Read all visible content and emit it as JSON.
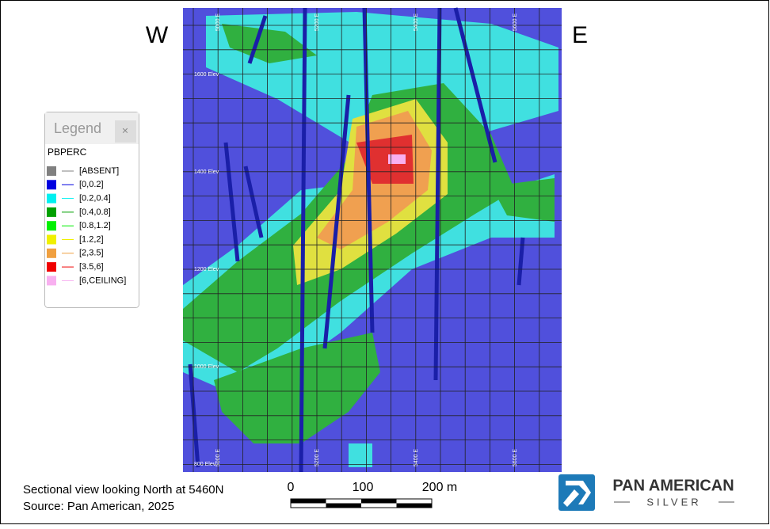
{
  "labels": {
    "west": "W",
    "east": "E"
  },
  "legend": {
    "title": "Legend",
    "close": "×",
    "field": "PBPERC",
    "items": [
      {
        "label": "[ABSENT]",
        "color": "#808080"
      },
      {
        "label": "[0,0.2]",
        "color": "#0000e0"
      },
      {
        "label": "[0.2,0.4]",
        "color": "#00f0f0"
      },
      {
        "label": "[0.4,0.8]",
        "color": "#00a000"
      },
      {
        "label": "[0.8,1.2]",
        "color": "#00f000"
      },
      {
        "label": "[1.2,2]",
        "color": "#f0f000"
      },
      {
        "label": "[2,3.5]",
        "color": "#f0a040"
      },
      {
        "label": "[3.5,6]",
        "color": "#f00000"
      },
      {
        "label": "[6,CEILING]",
        "color": "#f8b0f0"
      }
    ]
  },
  "section": {
    "easting_labels": [
      "5000 E",
      "5200 E",
      "5400 E",
      "5600 E"
    ],
    "elevation_labels": [
      "1600 Elev",
      "1400 Elev",
      "1200 Elev",
      "1000 Elev",
      "800 Elev"
    ]
  },
  "caption": [
    "Sectional view looking North at 5460N",
    "Source: Pan American, 2025"
  ],
  "scale_bar": {
    "labels": [
      "0",
      "100",
      "200 m"
    ]
  },
  "logo": {
    "name": "PAN AMERICAN",
    "sub": "SILVER"
  }
}
